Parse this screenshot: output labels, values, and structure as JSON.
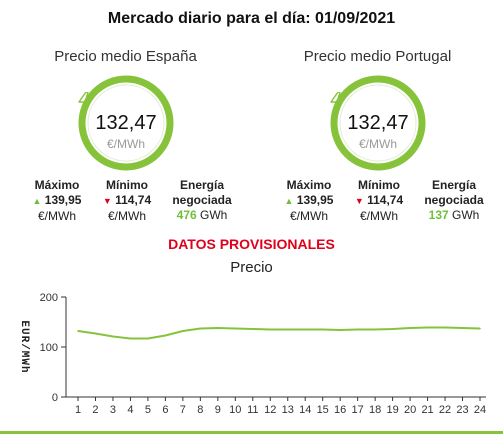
{
  "title": "Mercado diario para el día: 01/09/2021",
  "spain": {
    "title": "Precio medio España",
    "price": "132,47",
    "unit": "€/MWh",
    "max_label": "Máximo",
    "max_value": "139,95",
    "max_unit": "€/MWh",
    "min_label": "Mínimo",
    "min_value": "114,74",
    "min_unit": "€/MWh",
    "energy_label_1": "Energía",
    "energy_label_2": "negociada",
    "energy_value": "476",
    "energy_unit": "GWh"
  },
  "portugal": {
    "title": "Precio medio Portugal",
    "price": "132,47",
    "unit": "€/MWh",
    "max_label": "Máximo",
    "max_value": "139,95",
    "max_unit": "€/MWh",
    "min_label": "Mínimo",
    "min_value": "114,74",
    "min_unit": "€/MWh",
    "energy_label_1": "Energía",
    "energy_label_2": "negociada",
    "energy_value": "137",
    "energy_unit": "GWh"
  },
  "provisional": "DATOS PROVISIONALES",
  "colors": {
    "accent": "#86c33b",
    "alert": "#e0001b"
  },
  "icons": {
    "gauge": "lightning-bolt-icon",
    "max": "triangle-up-icon",
    "min": "triangle-down-icon"
  },
  "chart_data": {
    "type": "line",
    "title": "Precio",
    "ylabel": "EUR/MWh",
    "xlabel": "",
    "ylim": [
      0,
      200
    ],
    "yticks": [
      0,
      100,
      200
    ],
    "x": [
      1,
      2,
      3,
      4,
      5,
      6,
      7,
      8,
      9,
      10,
      11,
      12,
      13,
      14,
      15,
      16,
      17,
      18,
      19,
      20,
      21,
      22,
      23,
      24
    ],
    "series": [
      {
        "values": [
          132,
          127,
          121,
          117,
          117,
          123,
          132,
          137,
          138,
          137,
          136,
          135,
          135,
          135,
          135,
          134,
          135,
          135,
          136,
          138,
          139,
          139,
          138,
          137
        ]
      }
    ],
    "grid": false
  }
}
